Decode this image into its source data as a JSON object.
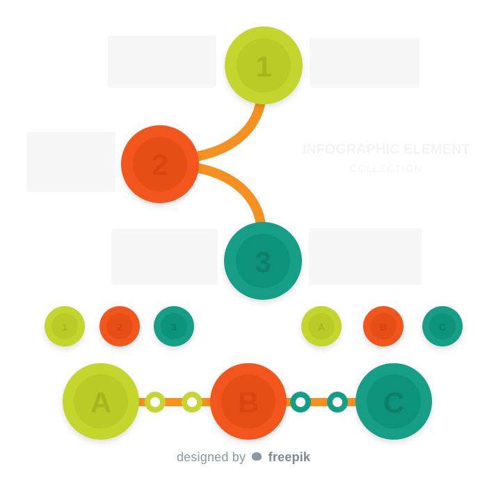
{
  "diagram": {
    "tree_nodes": [
      "1",
      "2",
      "3"
    ],
    "small_nodes": [
      "1",
      "2",
      "3",
      "A",
      "B",
      "C"
    ],
    "big_nodes": [
      "A",
      "B",
      "C"
    ],
    "title": "INFOGRAPHIC ELEMENT",
    "subtitle": "COLLECTION"
  },
  "colors": {
    "lime": "#c4d62f",
    "lime_inner": "#b8cb25",
    "orange": "#f2561b",
    "orange_inner": "#e54f15",
    "teal": "#139f86",
    "teal_inner": "#0f927b",
    "connector": "#f59021",
    "muted_text": "#f4f4f4",
    "credit": "#8d97a3"
  },
  "footer": {
    "designed_by": "designed by",
    "brand": "freepik"
  }
}
